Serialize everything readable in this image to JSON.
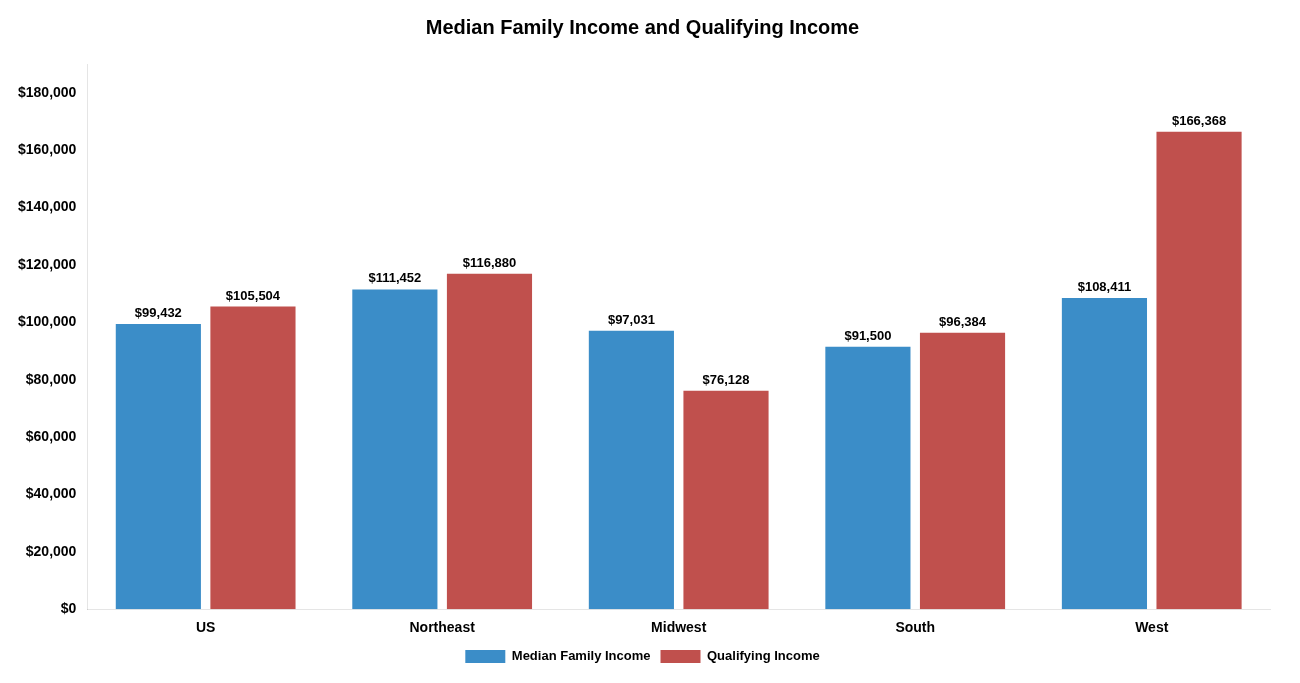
{
  "chart_data": {
    "type": "bar",
    "title": "Median Family Income and Qualifying Income",
    "categories": [
      "US",
      "Northeast",
      "Midwest",
      "South",
      "West"
    ],
    "series": [
      {
        "name": "Median Family Income",
        "color": "#3B8DC8",
        "values": [
          99432,
          111452,
          97031,
          91500,
          108411
        ],
        "value_labels": [
          "$99,432",
          "$111,452",
          "$97,031",
          "$91,500",
          "$108,411"
        ]
      },
      {
        "name": "Qualifying Income",
        "color": "#C0504D",
        "values": [
          105504,
          116880,
          76128,
          96384,
          166368
        ],
        "value_labels": [
          "$105,504",
          "$116,880",
          "$76,128",
          "$96,384",
          "$166,368"
        ]
      }
    ],
    "ylim": [
      0,
      190000
    ],
    "yticks": [
      {
        "value": 0,
        "label": "$0"
      },
      {
        "value": 20000,
        "label": "$20,000"
      },
      {
        "value": 40000,
        "label": "$40,000"
      },
      {
        "value": 60000,
        "label": "$60,000"
      },
      {
        "value": 80000,
        "label": "$80,000"
      },
      {
        "value": 100000,
        "label": "$100,000"
      },
      {
        "value": 120000,
        "label": "$120,000"
      },
      {
        "value": 140000,
        "label": "$140,000"
      },
      {
        "value": 160000,
        "label": "$160,000"
      },
      {
        "value": 180000,
        "label": "$180,000"
      }
    ],
    "grid": false,
    "legend": "bottom",
    "data_labels": true
  }
}
